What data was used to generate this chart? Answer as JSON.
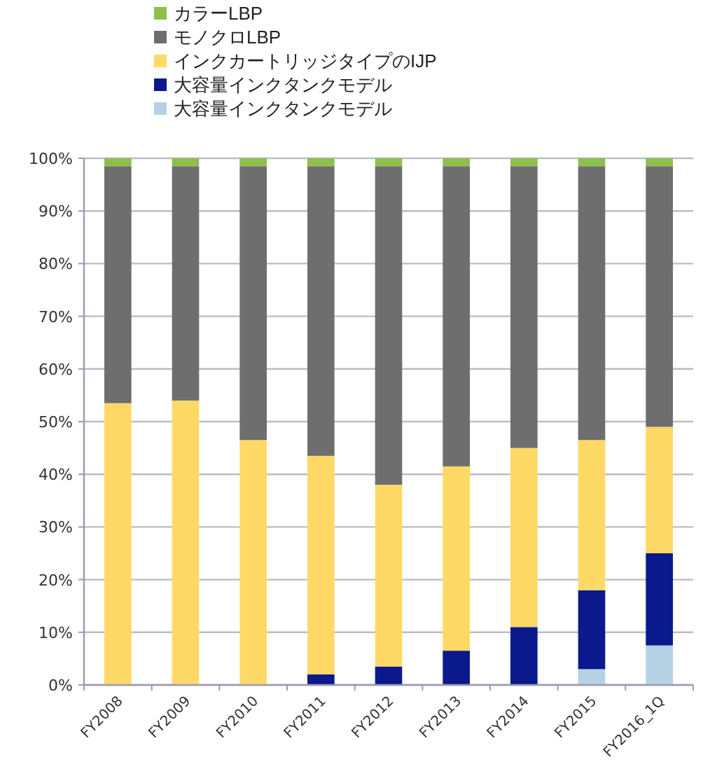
{
  "chart_data": {
    "type": "bar",
    "stacked": true,
    "categories": [
      "FY2008",
      "FY2009",
      "FY2010",
      "FY2011",
      "FY2012",
      "FY2013",
      "FY2014",
      "FY2015",
      "FY2016_1Q"
    ],
    "series": [
      {
        "name": "大容量インクタンクモデル",
        "color": "#b4d2e4",
        "values": [
          0,
          0,
          0,
          0,
          0,
          0,
          0,
          3,
          7.5
        ]
      },
      {
        "name": "大容量インクタンクモデル",
        "color": "#0a1a8c",
        "values": [
          0,
          0,
          0,
          2,
          3.5,
          6.5,
          11,
          15,
          17.5
        ]
      },
      {
        "name": "インクカートリッジタイプのIJP",
        "color": "#ffd966",
        "values": [
          53.5,
          54,
          46.5,
          41.5,
          34.5,
          35,
          34,
          28.5,
          24
        ]
      },
      {
        "name": "モノクロLBP",
        "color": "#6e6e6e",
        "values": [
          45,
          44.5,
          52,
          55,
          60.5,
          57,
          53.5,
          52,
          49.5
        ]
      },
      {
        "name": "カラーLBP",
        "color": "#8cc04a",
        "values": [
          1.5,
          1.5,
          1.5,
          1.5,
          1.5,
          1.5,
          1.5,
          1.5,
          1.5
        ]
      }
    ],
    "ylim": [
      0,
      100
    ],
    "yticks": [
      {
        "value": 0,
        "label": "0%"
      },
      {
        "value": 10,
        "label": "10%"
      },
      {
        "value": 20,
        "label": "20%"
      },
      {
        "value": 30,
        "label": "30%"
      },
      {
        "value": 40,
        "label": "40%"
      },
      {
        "value": 50,
        "label": "50%"
      },
      {
        "value": 60,
        "label": "60%"
      },
      {
        "value": 70,
        "label": "70%"
      },
      {
        "value": 80,
        "label": "80%"
      },
      {
        "value": 90,
        "label": "90%"
      },
      {
        "value": 100,
        "label": "100%"
      }
    ],
    "grid": "y",
    "legend": "top"
  }
}
